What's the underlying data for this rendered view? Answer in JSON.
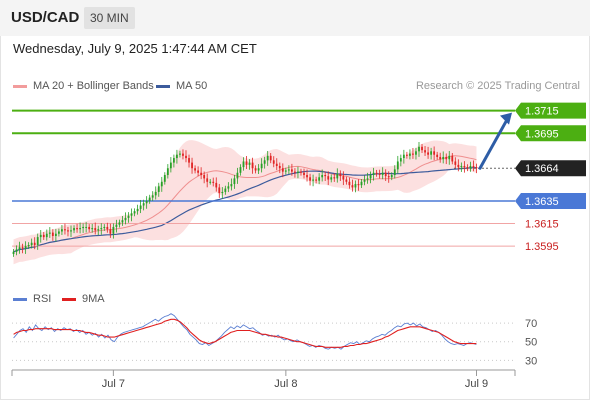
{
  "header": {
    "symbol": "USD/CAD",
    "timeframe": "30 MIN"
  },
  "datetime": "Wednesday, July 9, 2025 1:47:44 AM CET",
  "credit": "Research © 2025 Trading Central",
  "legend": {
    "bollinger_label": "MA 20 + Bollinger Bands",
    "ma50_label": "MA 50",
    "rsi_label": "RSI",
    "rsi_ma_label": "9MA"
  },
  "colors": {
    "up_candle": "#27a127",
    "down_candle": "#e02323",
    "resistance": "#4caf12",
    "support": "#4a78d6",
    "pivot_line": "#f1a4a4",
    "pivot_text": "#c81e1e",
    "current_box": "#222222",
    "band_fill": "#fbdada",
    "ma20": "#ef8f8f",
    "ma50": "#3c5b9c",
    "rsi": "#5b7fd2",
    "rsi_ma": "#e02020",
    "arrow": "#2e5da6"
  },
  "chart_data": [
    {
      "type": "candlestick",
      "title": "USD/CAD",
      "timeframe": "30 MIN",
      "y_range": [
        1.3565,
        1.3728
      ],
      "x_tick_labels": [
        "Jul 7",
        "Jul 8",
        "Jul 9"
      ],
      "x_tick_bar_index": [
        33,
        90,
        153
      ],
      "closes": [
        1.359,
        1.3592,
        1.3594,
        1.3593,
        1.3595,
        1.3596,
        1.3598,
        1.3596,
        1.3603,
        1.3605,
        1.3603,
        1.3606,
        1.3607,
        1.3604,
        1.3606,
        1.3608,
        1.361,
        1.3609,
        1.3608,
        1.3609,
        1.3611,
        1.361,
        1.3611,
        1.3612,
        1.3612,
        1.361,
        1.3611,
        1.3609,
        1.361,
        1.3611,
        1.3612,
        1.361,
        1.3606,
        1.3612,
        1.3614,
        1.3616,
        1.3618,
        1.362,
        1.3622,
        1.3624,
        1.3626,
        1.3628,
        1.3631,
        1.3633,
        1.3635,
        1.3638,
        1.364,
        1.3643,
        1.3648,
        1.3652,
        1.3658,
        1.3664,
        1.3669,
        1.3673,
        1.3676,
        1.3677,
        1.3675,
        1.3673,
        1.3669,
        1.3664,
        1.3662,
        1.366,
        1.3658,
        1.3655,
        1.3652,
        1.3652,
        1.3651,
        1.3647,
        1.3642,
        1.3643,
        1.3646,
        1.3648,
        1.365,
        1.3655,
        1.366,
        1.3665,
        1.367,
        1.3667,
        1.3669,
        1.3664,
        1.3662,
        1.3664,
        1.3668,
        1.3671,
        1.3675,
        1.3671,
        1.3668,
        1.3666,
        1.3664,
        1.3661,
        1.3662,
        1.3663,
        1.3661,
        1.366,
        1.3661,
        1.366,
        1.3658,
        1.3656,
        1.3653,
        1.3654,
        1.3653,
        1.3656,
        1.3658,
        1.3657,
        1.3654,
        1.3656,
        1.3655,
        1.3659,
        1.3657,
        1.3654,
        1.3652,
        1.3649,
        1.3647,
        1.365,
        1.3649,
        1.3652,
        1.3654,
        1.3655,
        1.3658,
        1.366,
        1.3659,
        1.3658,
        1.366,
        1.3657,
        1.3656,
        1.3658,
        1.3663,
        1.367,
        1.3673,
        1.3676,
        1.3675,
        1.3677,
        1.3676,
        1.3679,
        1.3683,
        1.368,
        1.3678,
        1.3676,
        1.3679,
        1.3676,
        1.3674,
        1.3672,
        1.3674,
        1.3672,
        1.3675,
        1.367,
        1.3667,
        1.3665,
        1.3666,
        1.3665,
        1.3664,
        1.3666,
        1.3665,
        1.3664
      ],
      "ma_20_current": 1.367,
      "ma_50_current": 1.3664,
      "levels": [
        {
          "label": "1.3715",
          "value": 1.3715,
          "kind": "resistance"
        },
        {
          "label": "1.3695",
          "value": 1.3695,
          "kind": "resistance"
        },
        {
          "label": "1.3664",
          "value": 1.3664,
          "kind": "current"
        },
        {
          "label": "1.3635",
          "value": 1.3635,
          "kind": "support"
        },
        {
          "label": "1.3615",
          "value": 1.3615,
          "kind": "pivot"
        },
        {
          "label": "1.3595",
          "value": 1.3595,
          "kind": "pivot"
        }
      ],
      "forecast_arrow": {
        "from": 1.3664,
        "to": 1.3715,
        "direction": "up"
      }
    },
    {
      "type": "line",
      "title": "RSI",
      "y_range": [
        24,
        84
      ],
      "y_ticks": [
        70,
        50,
        30
      ],
      "series": [
        {
          "name": "RSI",
          "values": [
            54,
            58,
            62,
            64,
            60,
            66,
            62,
            68,
            64,
            62,
            66,
            63,
            65,
            61,
            64,
            62,
            65,
            63,
            64,
            61,
            63,
            60,
            62,
            58,
            60,
            57,
            59,
            55,
            58,
            54,
            57,
            52,
            50,
            55,
            58,
            60,
            61,
            62,
            63,
            64,
            65,
            66,
            68,
            70,
            72,
            74,
            72,
            75,
            77,
            78,
            80,
            78,
            74,
            70,
            66,
            63,
            58,
            55,
            52,
            48,
            47,
            49,
            46,
            48,
            50,
            53,
            56,
            60,
            63,
            66,
            64,
            67,
            65,
            68,
            66,
            64,
            65,
            62,
            60,
            57,
            58,
            56,
            57,
            55,
            57,
            54,
            52,
            53,
            51,
            50,
            52,
            50,
            49,
            47,
            45,
            46,
            44,
            46,
            45,
            43,
            42,
            44,
            43,
            44,
            42,
            45,
            47,
            49,
            48,
            50,
            47,
            49,
            51,
            50,
            53,
            55,
            56,
            58,
            57,
            60,
            62,
            65,
            67,
            66,
            69,
            70,
            68,
            70,
            67,
            69,
            66,
            65,
            63,
            61,
            62,
            60,
            57,
            53,
            50,
            48,
            47,
            48,
            47,
            46,
            48,
            49,
            48,
            47
          ]
        },
        {
          "name": "9MA",
          "values": [
            58,
            60,
            61,
            62,
            62,
            63,
            63,
            64,
            64,
            64,
            64,
            64,
            64,
            63,
            63,
            63,
            63,
            63,
            63,
            62,
            62,
            62,
            61,
            60,
            60,
            59,
            58,
            57,
            57,
            56,
            55,
            55,
            55,
            56,
            57,
            58,
            59,
            60,
            61,
            62,
            63,
            64,
            65,
            66,
            67,
            68,
            69,
            70,
            72,
            73,
            74,
            74,
            73,
            71,
            68,
            65,
            61,
            58,
            55,
            52,
            50,
            49,
            48,
            49,
            50,
            52,
            54,
            56,
            58,
            60,
            61,
            62,
            62,
            62,
            62,
            62,
            61,
            60,
            59,
            58,
            58,
            57,
            56,
            56,
            55,
            55,
            54,
            53,
            52,
            51,
            50,
            50,
            49,
            48,
            47,
            46,
            45,
            45,
            45,
            44,
            44,
            44,
            44,
            44,
            44,
            45,
            45,
            46,
            46,
            47,
            47,
            48,
            48,
            49,
            50,
            51,
            52,
            53,
            55,
            56,
            58,
            60,
            62,
            63,
            64,
            65,
            66,
            66,
            66,
            66,
            65,
            64,
            63,
            62,
            61,
            60,
            58,
            56,
            54,
            52,
            50,
            49,
            48,
            48,
            48,
            48,
            48,
            48
          ]
        }
      ]
    }
  ]
}
